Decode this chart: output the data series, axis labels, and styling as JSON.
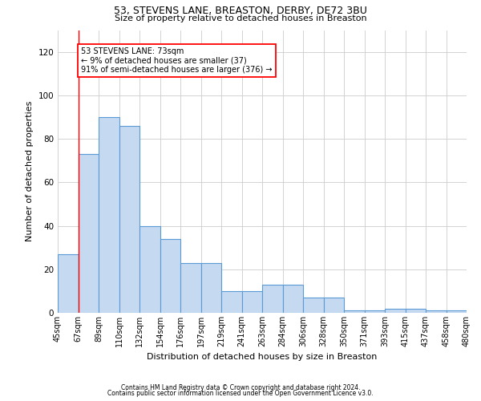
{
  "title1": "53, STEVENS LANE, BREASTON, DERBY, DE72 3BU",
  "title2": "Size of property relative to detached houses in Breaston",
  "xlabel": "Distribution of detached houses by size in Breaston",
  "ylabel": "Number of detached properties",
  "footer1": "Contains HM Land Registry data © Crown copyright and database right 2024.",
  "footer2": "Contains public sector information licensed under the Open Government Licence v3.0.",
  "annotation_line1": "53 STEVENS LANE: 73sqm",
  "annotation_line2": "← 9% of detached houses are smaller (37)",
  "annotation_line3": "91% of semi-detached houses are larger (376) →",
  "bar_values": [
    27,
    73,
    90,
    86,
    40,
    34,
    23,
    23,
    10,
    10,
    13,
    13,
    7,
    7,
    1,
    1,
    2,
    2,
    1,
    1
  ],
  "bar_labels": [
    "45sqm",
    "67sqm",
    "89sqm",
    "110sqm",
    "132sqm",
    "154sqm",
    "176sqm",
    "197sqm",
    "219sqm",
    "241sqm",
    "263sqm",
    "284sqm",
    "306sqm",
    "328sqm",
    "350sqm",
    "371sqm",
    "393sqm",
    "415sqm",
    "437sqm",
    "458sqm",
    "480sqm"
  ],
  "n_bars": 20,
  "ylim": [
    0,
    130
  ],
  "yticks": [
    0,
    20,
    40,
    60,
    80,
    100,
    120
  ],
  "bar_color": "#c5d9f1",
  "bar_edge_color": "#5b9bd5",
  "red_line_x": 1.0,
  "background_color": "#ffffff",
  "grid_color": "#cccccc",
  "title1_fontsize": 9,
  "title2_fontsize": 8,
  "ylabel_fontsize": 8,
  "xlabel_fontsize": 8,
  "tick_fontsize": 7,
  "footer_fontsize": 5.5,
  "annotation_fontsize": 7
}
